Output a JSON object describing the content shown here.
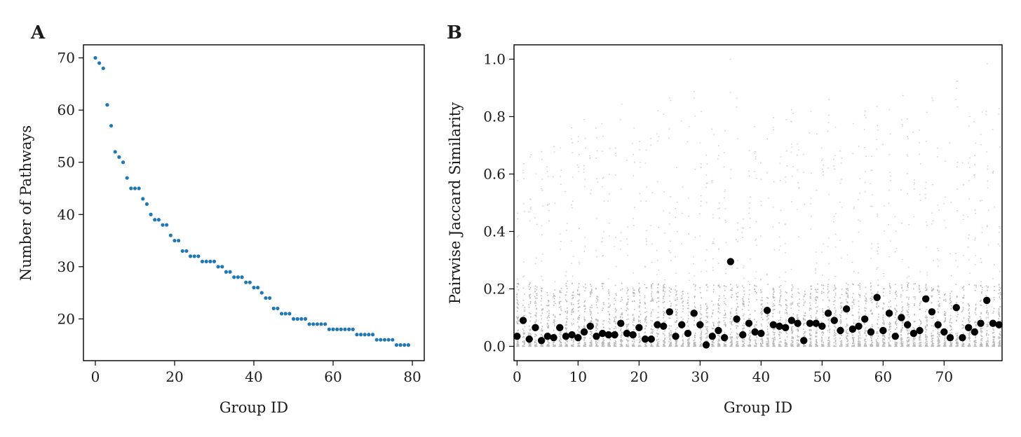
{
  "chart_data": [
    {
      "type": "scatter",
      "panel": "A",
      "title": "",
      "xlabel": "Group ID",
      "ylabel": "Number of Pathways",
      "xlim": [
        -3,
        83
      ],
      "ylim": [
        12,
        72.5
      ],
      "xticks": [
        0,
        20,
        40,
        60,
        80
      ],
      "yticks": [
        20,
        30,
        40,
        50,
        60,
        70
      ],
      "grid": false,
      "marker_color": "#1f77b4",
      "x": [
        0,
        1,
        2,
        3,
        4,
        5,
        6,
        7,
        8,
        9,
        10,
        11,
        12,
        13,
        14,
        15,
        16,
        17,
        18,
        19,
        20,
        21,
        22,
        23,
        24,
        25,
        26,
        27,
        28,
        29,
        30,
        31,
        32,
        33,
        34,
        35,
        36,
        37,
        38,
        39,
        40,
        41,
        42,
        43,
        44,
        45,
        46,
        47,
        48,
        49,
        50,
        51,
        52,
        53,
        54,
        55,
        56,
        57,
        58,
        59,
        60,
        61,
        62,
        63,
        64,
        65,
        66,
        67,
        68,
        69,
        70,
        71,
        72,
        73,
        74,
        75,
        76,
        77,
        78,
        79
      ],
      "y": [
        70,
        69,
        68,
        61,
        57,
        52,
        51,
        50,
        47,
        45,
        45,
        45,
        43,
        42,
        40,
        39,
        39,
        38,
        38,
        36,
        35,
        35,
        33,
        33,
        32,
        32,
        32,
        31,
        31,
        31,
        31,
        30,
        30,
        29,
        29,
        28,
        28,
        28,
        27,
        27,
        26,
        26,
        25,
        24,
        24,
        22,
        22,
        21,
        21,
        21,
        20,
        20,
        20,
        20,
        19,
        19,
        19,
        19,
        19,
        18,
        18,
        18,
        18,
        18,
        18,
        18,
        17,
        17,
        17,
        17,
        17,
        16,
        16,
        16,
        16,
        16,
        15,
        15,
        15,
        15
      ]
    },
    {
      "type": "scatter",
      "panel": "B",
      "title": "",
      "xlabel": "Group ID",
      "ylabel": "Pairwise Jaccard Similarity",
      "xlim": [
        -0.5,
        79.5
      ],
      "ylim": [
        -0.05,
        1.05
      ],
      "xticks": [
        0,
        10,
        20,
        30,
        40,
        50,
        60,
        70
      ],
      "yticks": [
        0.0,
        0.2,
        0.4,
        0.6,
        0.8,
        1.0
      ],
      "grid": false,
      "pair_color": "#808080",
      "mean_color": "#000000",
      "means": [
        0.035,
        0.09,
        0.025,
        0.065,
        0.02,
        0.035,
        0.03,
        0.065,
        0.035,
        0.04,
        0.03,
        0.05,
        0.07,
        0.035,
        0.045,
        0.04,
        0.04,
        0.08,
        0.045,
        0.04,
        0.065,
        0.025,
        0.025,
        0.075,
        0.07,
        0.12,
        0.035,
        0.075,
        0.045,
        0.115,
        0.075,
        0.005,
        0.035,
        0.055,
        0.03,
        0.295,
        0.095,
        0.04,
        0.08,
        0.05,
        0.045,
        0.125,
        0.075,
        0.07,
        0.065,
        0.09,
        0.08,
        0.02,
        0.08,
        0.08,
        0.07,
        0.115,
        0.09,
        0.055,
        0.13,
        0.06,
        0.07,
        0.095,
        0.05,
        0.17,
        0.055,
        0.115,
        0.035,
        0.1,
        0.075,
        0.045,
        0.055,
        0.165,
        0.12,
        0.075,
        0.05,
        0.03,
        0.135,
        0.03,
        0.065,
        0.05,
        0.08,
        0.16,
        0.08,
        0.075
      ]
    }
  ],
  "labels": {
    "panel_a": "A",
    "panel_b": "B"
  }
}
